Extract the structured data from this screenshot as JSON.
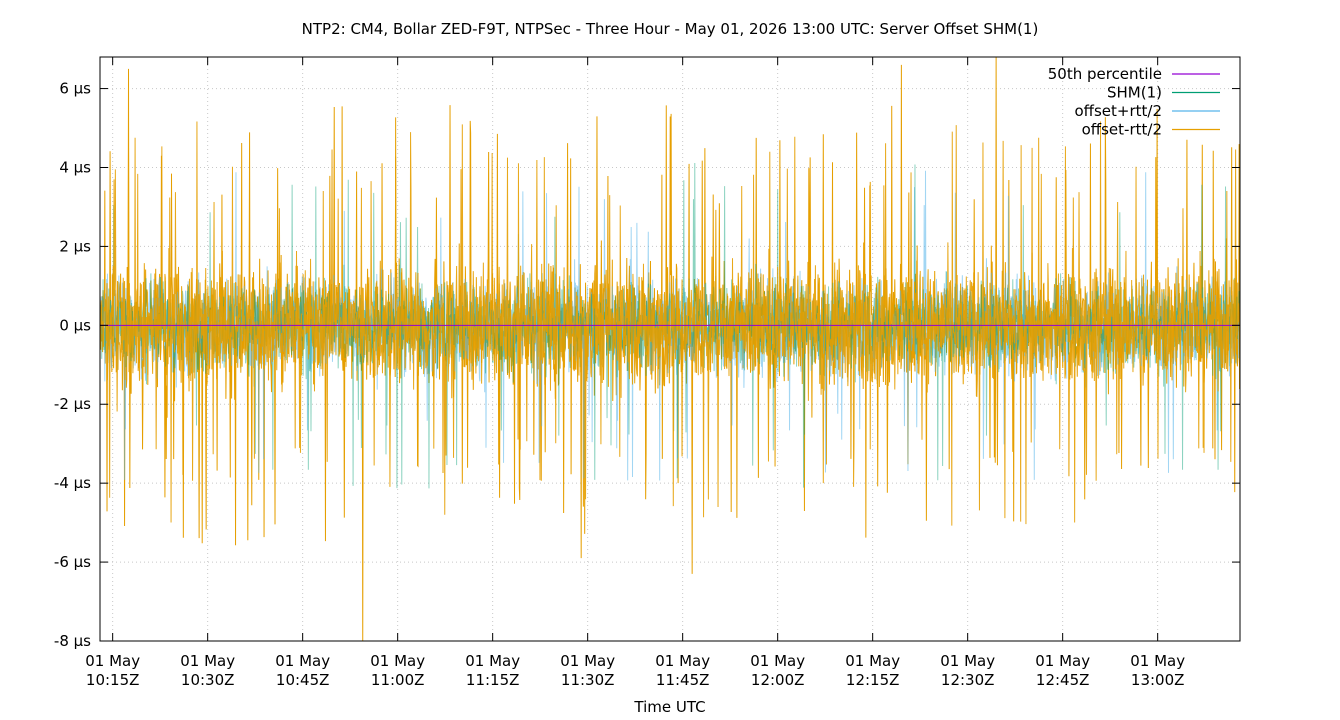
{
  "chart_data": {
    "type": "line",
    "title": "NTP2: CM4, Bollar ZED-F9T, NTPSec - Three Hour - May 01, 2026 13:00 UTC: Server Offset SHM(1)",
    "xlabel": "Time UTC",
    "ylabel": "",
    "x_range_minutes": [
      613,
      793
    ],
    "x_range": [
      "01 May 10:13Z",
      "01 May 13:13Z"
    ],
    "ylim": [
      -8,
      6.8
    ],
    "y_unit": "µs",
    "y_ticks": [
      -8,
      -6,
      -4,
      -2,
      0,
      2,
      4,
      6
    ],
    "y_tick_labels": [
      "-8 µs",
      "-6 µs",
      "-4 µs",
      "-2 µs",
      "0 µs",
      "2 µs",
      "4 µs",
      "6 µs"
    ],
    "x_ticks_minutes": [
      615,
      630,
      645,
      660,
      675,
      690,
      705,
      720,
      735,
      750,
      765,
      780
    ],
    "x_tick_labels": [
      [
        "01 May",
        "10:15Z"
      ],
      [
        "01 May",
        "10:30Z"
      ],
      [
        "01 May",
        "10:45Z"
      ],
      [
        "01 May",
        "11:00Z"
      ],
      [
        "01 May",
        "11:15Z"
      ],
      [
        "01 May",
        "11:30Z"
      ],
      [
        "01 May",
        "11:45Z"
      ],
      [
        "01 May",
        "12:00Z"
      ],
      [
        "01 May",
        "12:15Z"
      ],
      [
        "01 May",
        "12:30Z"
      ],
      [
        "01 May",
        "12:45Z"
      ],
      [
        "01 May",
        "13:00Z"
      ]
    ],
    "grid": true,
    "legend_position": "top-right",
    "series": [
      {
        "name": "50th percentile",
        "color": "#9400d3",
        "value": 0
      },
      {
        "name": "SHM(1)",
        "color": "#009e73",
        "typical_range": [
          -3,
          3
        ]
      },
      {
        "name": "offset+rtt/2",
        "color": "#56b4e9",
        "typical_range": [
          -3,
          3
        ]
      },
      {
        "name": "offset-rtt/2",
        "color": "#e69f00",
        "range": [
          -8,
          6.8
        ]
      }
    ],
    "notable_extremes": [
      {
        "x_minutes": 617.5,
        "value": 6.5
      },
      {
        "x_minutes": 654.5,
        "value": -8.0
      },
      {
        "x_minutes": 739.5,
        "value": 6.6
      },
      {
        "x_minutes": 754.5,
        "value": 6.8
      },
      {
        "x_minutes": 706.5,
        "value": -6.3
      },
      {
        "x_minutes": 689,
        "value": -5.9
      }
    ]
  }
}
